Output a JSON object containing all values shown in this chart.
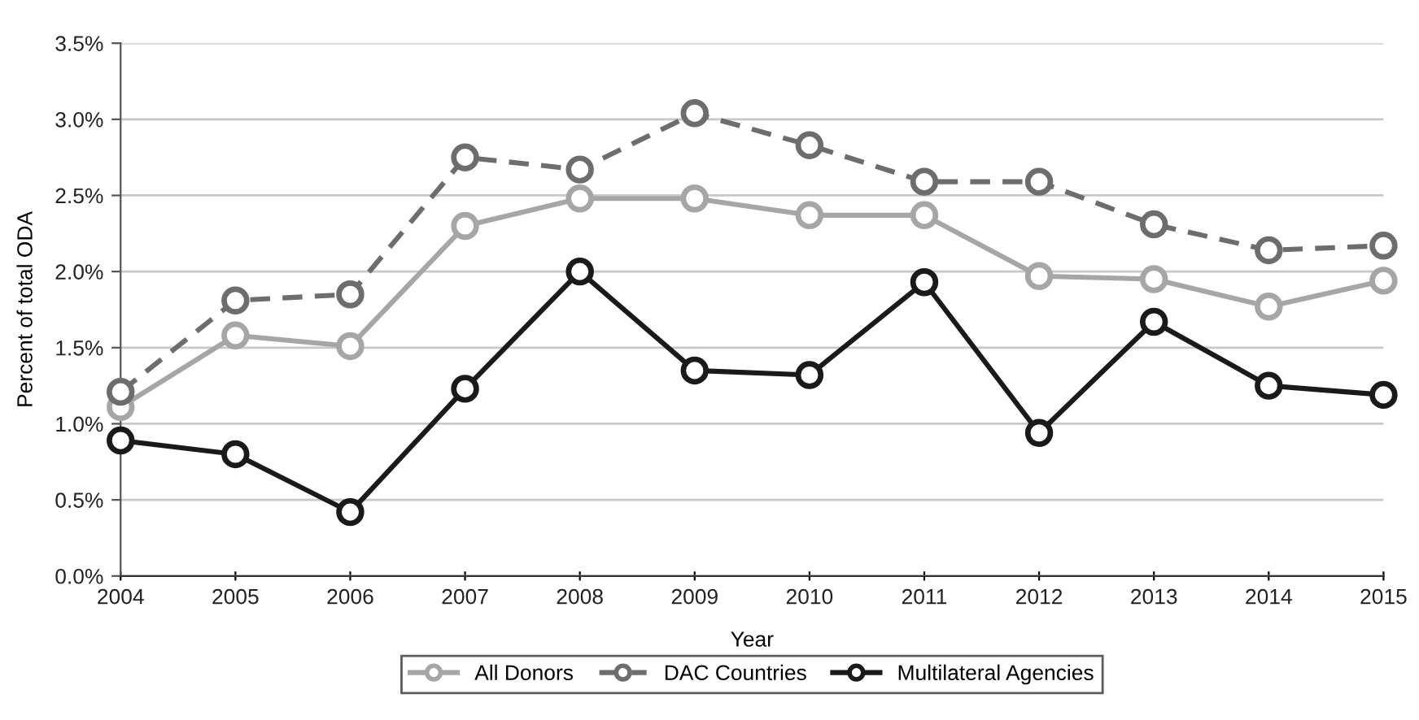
{
  "chart_data": {
    "type": "line",
    "xlabel": "Year",
    "ylabel": "Percent of total ODA",
    "x": [
      2004,
      2005,
      2006,
      2007,
      2008,
      2009,
      2010,
      2011,
      2012,
      2013,
      2014,
      2015
    ],
    "xlim": [
      2004,
      2015
    ],
    "xticks": [
      2004,
      2005,
      2006,
      2007,
      2008,
      2009,
      2010,
      2011,
      2012,
      2013,
      2014,
      2015
    ],
    "ylim": [
      0,
      3.5
    ],
    "yticks": [
      {
        "value": 0,
        "label": "0.0%"
      },
      {
        "value": 0.5,
        "label": "0.5%"
      },
      {
        "value": 1,
        "label": "1.0%"
      },
      {
        "value": 1.5,
        "label": "1.5%"
      },
      {
        "value": 2,
        "label": "2.0%"
      },
      {
        "value": 2.5,
        "label": "2.5%"
      },
      {
        "value": 3,
        "label": "3.0%"
      },
      {
        "value": 3.5,
        "label": "3.5%"
      }
    ],
    "grid": "y",
    "legend": "bottom",
    "marker": "circle",
    "series": [
      {
        "name": "All Donors",
        "color": "#a6a6a6",
        "line_style": "solid",
        "values": [
          1.11,
          1.58,
          1.51,
          2.3,
          2.48,
          2.48,
          2.37,
          2.37,
          1.97,
          1.95,
          1.77,
          1.94
        ]
      },
      {
        "name": "DAC Countries",
        "color": "#6d6d6d",
        "line_style": "dashed",
        "values": [
          1.21,
          1.81,
          1.85,
          2.75,
          2.67,
          3.04,
          2.83,
          2.59,
          2.59,
          2.31,
          2.14,
          2.17
        ]
      },
      {
        "name": "Multilateral Agencies",
        "color": "#1a1a1a",
        "line_style": "solid",
        "values": [
          0.89,
          0.8,
          0.42,
          1.23,
          2.0,
          1.35,
          1.32,
          1.93,
          0.94,
          1.67,
          1.25,
          1.19
        ]
      }
    ]
  }
}
